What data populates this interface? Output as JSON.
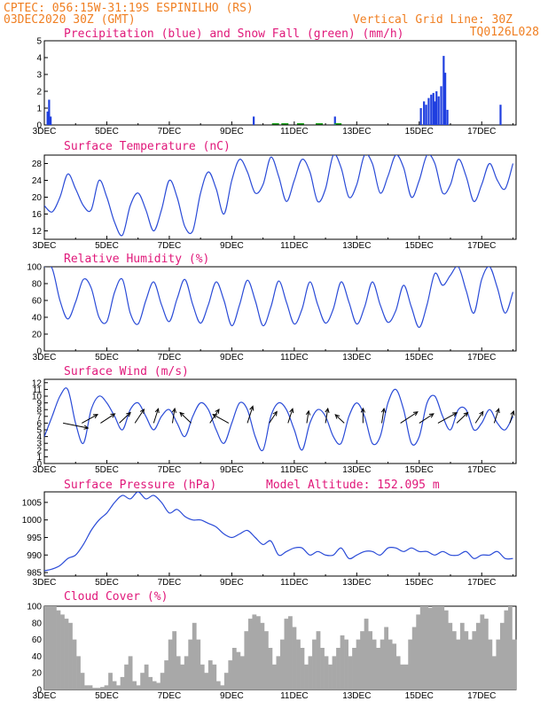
{
  "header": {
    "line1": "CPTEC:   056:15W-31:19S   ESPINILHO (RS)",
    "line2": "03DEC2020 30Z (GMT)",
    "grid_note": "Vertical Grid Line: 30Z",
    "code": "TQ0126L028"
  },
  "colors": {
    "precip": "#1f3fe0",
    "snow": "#1fa61f",
    "line": "#2a4bd7",
    "wind_arrow": "#000000",
    "cloud": "#a8a8a8",
    "title": "#e0187a",
    "header": "#f07f22"
  },
  "x_tick_labels": [
    "3DEC",
    "5DEC",
    "7DEC",
    "9DEC",
    "11DEC",
    "13DEC",
    "15DEC",
    "17DEC"
  ],
  "chart_data": [
    {
      "type": "bar",
      "title": "Precipitation (blue) and Snow Fall (green) (mm/h)",
      "x_start_day": 3,
      "x_end_day": 18.1,
      "ylim": [
        0,
        5
      ],
      "yticks": [
        0,
        1,
        2,
        3,
        4,
        5
      ],
      "series": [
        {
          "name": "Precipitation",
          "points": [
            [
              3.1,
              0.8
            ],
            [
              3.15,
              1.5
            ],
            [
              3.2,
              0.5
            ],
            [
              9.7,
              0.5
            ],
            [
              12.3,
              0.5
            ],
            [
              15.05,
              1.0
            ],
            [
              15.15,
              1.4
            ],
            [
              15.22,
              1.2
            ],
            [
              15.3,
              1.6
            ],
            [
              15.38,
              1.8
            ],
            [
              15.45,
              1.9
            ],
            [
              15.5,
              1.4
            ],
            [
              15.55,
              2.0
            ],
            [
              15.62,
              1.7
            ],
            [
              15.7,
              2.3
            ],
            [
              15.78,
              4.1
            ],
            [
              15.83,
              3.1
            ],
            [
              15.9,
              0.9
            ],
            [
              17.6,
              1.2
            ]
          ]
        },
        {
          "name": "Snow Fall",
          "points": []
        }
      ]
    },
    {
      "type": "line",
      "title": "Surface Temperature (nC)",
      "ylim": [
        10,
        30
      ],
      "yticks": [
        12,
        16,
        20,
        24,
        28
      ],
      "x": [
        3.0,
        3.25,
        3.5,
        3.75,
        4.0,
        4.25,
        4.5,
        4.75,
        5.0,
        5.25,
        5.5,
        5.75,
        6.0,
        6.25,
        6.5,
        6.75,
        7.0,
        7.25,
        7.5,
        7.75,
        8.0,
        8.25,
        8.5,
        8.75,
        9.0,
        9.25,
        9.5,
        9.75,
        10.0,
        10.25,
        10.5,
        10.75,
        11.0,
        11.25,
        11.5,
        11.75,
        12.0,
        12.25,
        12.5,
        12.75,
        13.0,
        13.25,
        13.5,
        13.75,
        14.0,
        14.25,
        14.5,
        14.75,
        15.0,
        15.25,
        15.5,
        15.75,
        16.0,
        16.25,
        16.5,
        16.75,
        17.0,
        17.25,
        17.5,
        17.75,
        18.0
      ],
      "y": [
        18,
        16.5,
        20,
        25.5,
        22,
        18,
        17,
        24,
        20,
        14,
        11,
        18,
        21,
        17,
        12,
        17,
        24,
        20,
        13,
        12,
        21,
        26,
        22,
        16,
        24,
        29,
        26,
        21,
        23,
        29.5,
        25,
        19,
        24,
        29,
        26,
        19,
        22,
        30,
        27,
        20,
        23,
        30,
        28,
        21,
        25,
        30,
        27,
        20,
        24,
        30,
        28,
        21,
        23,
        29,
        25,
        19,
        23,
        28,
        24,
        22,
        28
      ]
    },
    {
      "type": "line",
      "title": "Relative Humidity (%)",
      "ylim": [
        0,
        100
      ],
      "yticks": [
        0,
        20,
        40,
        60,
        80,
        100
      ],
      "x": [
        3.0,
        3.25,
        3.5,
        3.75,
        4.0,
        4.25,
        4.5,
        4.75,
        5.0,
        5.25,
        5.5,
        5.75,
        6.0,
        6.25,
        6.5,
        6.75,
        7.0,
        7.25,
        7.5,
        7.75,
        8.0,
        8.25,
        8.5,
        8.75,
        9.0,
        9.25,
        9.5,
        9.75,
        10.0,
        10.25,
        10.5,
        10.75,
        11.0,
        11.25,
        11.5,
        11.75,
        12.0,
        12.25,
        12.5,
        12.75,
        13.0,
        13.25,
        13.5,
        13.75,
        14.0,
        14.25,
        14.5,
        14.75,
        15.0,
        15.25,
        15.5,
        15.75,
        16.0,
        16.25,
        16.5,
        16.75,
        17.0,
        17.25,
        17.5,
        17.75,
        18.0
      ],
      "y": [
        100,
        98,
        60,
        38,
        58,
        85,
        75,
        40,
        35,
        70,
        85,
        45,
        32,
        60,
        82,
        55,
        35,
        62,
        85,
        55,
        33,
        55,
        82,
        60,
        30,
        55,
        84,
        60,
        30,
        52,
        83,
        58,
        32,
        50,
        82,
        55,
        33,
        50,
        82,
        58,
        32,
        52,
        82,
        55,
        34,
        48,
        78,
        52,
        28,
        55,
        92,
        78,
        90,
        100,
        72,
        45,
        85,
        100,
        75,
        45,
        70
      ]
    },
    {
      "type": "line",
      "title": "Surface Wind (m/s)",
      "ylim": [
        0,
        12.5
      ],
      "yticks": [
        0,
        1,
        2,
        3,
        4,
        5,
        6,
        7,
        8,
        9,
        10,
        11,
        12
      ],
      "x": [
        3.0,
        3.25,
        3.5,
        3.75,
        4.0,
        4.25,
        4.5,
        4.75,
        5.0,
        5.25,
        5.5,
        5.75,
        6.0,
        6.25,
        6.5,
        6.75,
        7.0,
        7.25,
        7.5,
        7.75,
        8.0,
        8.25,
        8.5,
        8.75,
        9.0,
        9.25,
        9.5,
        9.75,
        10.0,
        10.25,
        10.5,
        10.75,
        11.0,
        11.25,
        11.5,
        11.75,
        12.0,
        12.25,
        12.5,
        12.75,
        13.0,
        13.25,
        13.5,
        13.75,
        14.0,
        14.25,
        14.5,
        14.75,
        15.0,
        15.25,
        15.5,
        15.75,
        16.0,
        16.25,
        16.5,
        16.75,
        17.0,
        17.25,
        17.5,
        17.75,
        18.0
      ],
      "y": [
        4,
        7,
        10,
        11,
        6,
        3,
        8,
        10,
        9,
        7,
        5,
        8,
        9,
        7,
        5,
        7,
        8,
        6,
        4,
        7,
        9,
        8,
        5,
        3,
        6,
        9,
        8,
        4,
        2,
        7,
        9,
        8,
        5,
        2,
        6,
        8,
        7,
        4,
        3,
        7,
        9,
        7,
        3,
        4,
        9,
        11,
        8,
        3,
        4,
        9,
        10,
        7,
        5,
        8,
        8,
        5,
        6,
        8,
        6,
        5,
        7
      ]
    },
    {
      "type": "line",
      "title": "Surface Pressure (hPa)",
      "annotation": "Model Altitude: 152.095 m",
      "ylim": [
        984,
        1008
      ],
      "yticks": [
        985,
        990,
        995,
        1000,
        1005
      ],
      "x": [
        3.0,
        3.25,
        3.5,
        3.75,
        4.0,
        4.25,
        4.5,
        4.75,
        5.0,
        5.25,
        5.5,
        5.75,
        6.0,
        6.25,
        6.5,
        6.75,
        7.0,
        7.25,
        7.5,
        7.75,
        8.0,
        8.25,
        8.5,
        8.75,
        9.0,
        9.25,
        9.5,
        9.75,
        10.0,
        10.25,
        10.5,
        10.75,
        11.0,
        11.25,
        11.5,
        11.75,
        12.0,
        12.25,
        12.5,
        12.75,
        13.0,
        13.25,
        13.5,
        13.75,
        14.0,
        14.25,
        14.5,
        14.75,
        15.0,
        15.25,
        15.5,
        15.75,
        16.0,
        16.25,
        16.5,
        16.75,
        17.0,
        17.25,
        17.5,
        17.75,
        18.0
      ],
      "y": [
        985.5,
        986,
        987,
        989,
        990,
        993,
        997,
        1000,
        1002,
        1005,
        1007,
        1006,
        1008,
        1006,
        1007,
        1005,
        1002,
        1003,
        1001,
        1000,
        1000,
        999,
        998,
        996,
        995,
        996,
        997,
        995,
        993,
        994,
        990,
        991,
        992,
        992,
        990,
        991,
        990,
        990,
        992,
        989,
        990,
        991,
        991,
        990,
        992,
        992,
        991,
        992,
        991,
        991,
        990,
        991,
        990,
        990,
        991,
        989,
        990,
        990,
        991,
        989,
        989
      ]
    },
    {
      "type": "bar",
      "title": "Cloud Cover (%)",
      "ylim": [
        0,
        100
      ],
      "yticks": [
        0,
        20,
        40,
        60,
        80,
        100
      ],
      "x_start_day": 3,
      "x_end_day": 18.1,
      "values": [
        100,
        100,
        100,
        95,
        90,
        85,
        80,
        60,
        40,
        20,
        5,
        5,
        2,
        2,
        3,
        5,
        20,
        10,
        5,
        15,
        30,
        40,
        10,
        5,
        20,
        30,
        15,
        10,
        8,
        20,
        35,
        60,
        70,
        40,
        30,
        40,
        60,
        80,
        60,
        30,
        20,
        35,
        30,
        10,
        5,
        20,
        35,
        50,
        45,
        40,
        70,
        85,
        90,
        88,
        80,
        70,
        50,
        30,
        40,
        60,
        85,
        88,
        75,
        60,
        50,
        30,
        40,
        60,
        70,
        50,
        40,
        30,
        40,
        50,
        65,
        60,
        40,
        50,
        60,
        70,
        85,
        70,
        60,
        50,
        60,
        75,
        60,
        55,
        40,
        30,
        30,
        60,
        75,
        90,
        100,
        100,
        98,
        100,
        100,
        100,
        95,
        80,
        70,
        60,
        80,
        70,
        60,
        70,
        80,
        90,
        85,
        60,
        40,
        60,
        80,
        95,
        100,
        60
      ]
    }
  ],
  "wind_arrows": [
    {
      "day": 3.6,
      "dir_deg": 200,
      "speed": 6
    },
    {
      "day": 4.2,
      "dir_deg": 135,
      "speed": 5
    },
    {
      "day": 4.8,
      "dir_deg": 130,
      "speed": 5
    },
    {
      "day": 5.4,
      "dir_deg": 120,
      "speed": 5
    },
    {
      "day": 5.9,
      "dir_deg": 110,
      "speed": 6
    },
    {
      "day": 6.5,
      "dir_deg": 100,
      "speed": 6
    },
    {
      "day": 7.1,
      "dir_deg": 95,
      "speed": 6
    },
    {
      "day": 7.7,
      "dir_deg": 60,
      "speed": 5
    },
    {
      "day": 8.3,
      "dir_deg": 110,
      "speed": 6
    },
    {
      "day": 8.9,
      "dir_deg": 45,
      "speed": 5
    },
    {
      "day": 9.5,
      "dir_deg": 100,
      "speed": 7
    },
    {
      "day": 10.2,
      "dir_deg": 110,
      "speed": 5
    },
    {
      "day": 10.8,
      "dir_deg": 100,
      "speed": 6
    },
    {
      "day": 11.4,
      "dir_deg": 95,
      "speed": 5
    },
    {
      "day": 12.0,
      "dir_deg": 95,
      "speed": 6
    },
    {
      "day": 12.6,
      "dir_deg": 60,
      "speed": 4
    },
    {
      "day": 13.2,
      "dir_deg": 90,
      "speed": 6
    },
    {
      "day": 13.8,
      "dir_deg": 95,
      "speed": 6
    },
    {
      "day": 14.4,
      "dir_deg": 130,
      "speed": 6
    },
    {
      "day": 15.0,
      "dir_deg": 130,
      "speed": 5
    },
    {
      "day": 15.6,
      "dir_deg": 135,
      "speed": 6
    },
    {
      "day": 16.2,
      "dir_deg": 120,
      "speed": 5
    },
    {
      "day": 16.8,
      "dir_deg": 110,
      "speed": 5
    },
    {
      "day": 17.4,
      "dir_deg": 100,
      "speed": 6
    },
    {
      "day": 17.9,
      "dir_deg": 100,
      "speed": 5
    }
  ]
}
